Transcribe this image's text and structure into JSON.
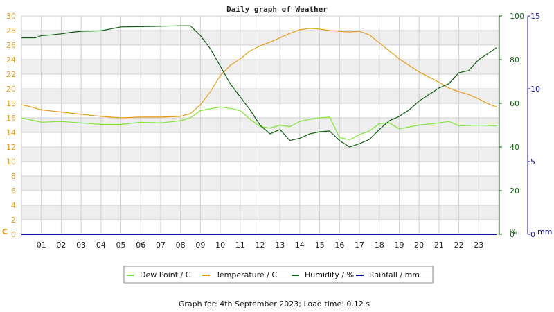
{
  "colors": {
    "dew": "#7ce62e",
    "temp": "#e69a12",
    "humidity": "#0b5e0b",
    "rain": "#1111aa",
    "band": "#eeeeee",
    "grid": "#cfcfcf"
  },
  "chart_data": {
    "type": "line",
    "title": "Daily graph of Weather",
    "footer": "Graph for: 4th September 2023; Load time: 0.12 s",
    "x_ticks": [
      "01",
      "02",
      "03",
      "04",
      "05",
      "06",
      "07",
      "08",
      "09",
      "10",
      "11",
      "12",
      "13",
      "14",
      "15",
      "16",
      "17",
      "18",
      "19",
      "20",
      "21",
      "22",
      "23"
    ],
    "xlim": [
      0,
      24
    ],
    "axes": {
      "temperature": {
        "unit": "C",
        "ylim": [
          0,
          30
        ],
        "ticks": [
          "0",
          "2",
          "4",
          "6",
          "8",
          "10",
          "12",
          "14",
          "16",
          "18",
          "20",
          "22",
          "24",
          "26",
          "28",
          "30"
        ]
      },
      "humidity": {
        "unit": "%",
        "ylim": [
          0,
          100
        ],
        "ticks": [
          "0",
          "20",
          "40",
          "60",
          "80",
          "100"
        ]
      },
      "rainfall": {
        "unit": "mm",
        "ylim": [
          0,
          15
        ],
        "ticks": [
          "0",
          "5",
          "10",
          "15"
        ]
      }
    },
    "grid": true,
    "legend_position": "bottom",
    "series": [
      {
        "name": "Dew Point / C",
        "axis": "temperature",
        "color_key": "dew",
        "x": [
          0,
          1,
          2,
          3,
          4,
          5,
          6,
          7,
          8,
          8.5,
          9,
          10,
          10.5,
          11,
          11.5,
          12,
          12.5,
          13,
          13.5,
          14,
          14.5,
          15,
          15.5,
          16,
          16.5,
          17,
          17.5,
          18,
          18.5,
          19,
          20,
          21,
          21.5,
          22,
          23,
          23.9
        ],
        "y": [
          16.0,
          15.4,
          15.5,
          15.3,
          15.1,
          15.1,
          15.4,
          15.3,
          15.6,
          16.0,
          17.0,
          17.5,
          17.3,
          17.0,
          15.8,
          14.8,
          14.6,
          15.0,
          14.8,
          15.5,
          15.8,
          16.0,
          16.1,
          13.3,
          13.0,
          13.7,
          14.2,
          15.2,
          15.3,
          14.5,
          15.0,
          15.3,
          15.5,
          14.9,
          15.0,
          14.9
        ]
      },
      {
        "name": "Temperature / C",
        "axis": "temperature",
        "color_key": "temp",
        "x": [
          0,
          0.5,
          1,
          2,
          3,
          4,
          5,
          6,
          7,
          8,
          8.5,
          9,
          9.5,
          10,
          10.5,
          11,
          11.5,
          12,
          12.5,
          13,
          13.5,
          14,
          14.5,
          15,
          15.5,
          16,
          16.5,
          17,
          17.5,
          18,
          18.5,
          19,
          19.5,
          20,
          20.5,
          21,
          21.5,
          22,
          22.5,
          23,
          23.5,
          23.9
        ],
        "y": [
          17.8,
          17.5,
          17.1,
          16.8,
          16.5,
          16.2,
          16.0,
          16.1,
          16.1,
          16.2,
          16.6,
          17.8,
          19.6,
          21.8,
          23.2,
          24.1,
          25.2,
          25.9,
          26.4,
          27.0,
          27.6,
          28.1,
          28.3,
          28.2,
          28.0,
          27.9,
          27.8,
          27.9,
          27.4,
          26.3,
          25.2,
          24.1,
          23.2,
          22.3,
          21.6,
          20.9,
          20.1,
          19.6,
          19.2,
          18.6,
          17.9,
          17.5
        ]
      },
      {
        "name": "Humidity / %",
        "axis": "humidity",
        "color_key": "humidity",
        "x": [
          0,
          0.7,
          1.0,
          1.5,
          2,
          2.5,
          3,
          4,
          5,
          6,
          7,
          8,
          8.5,
          9,
          9.5,
          10,
          10.5,
          11,
          11.5,
          12,
          12.5,
          13,
          13.5,
          14,
          14.5,
          15,
          15.5,
          16,
          16.5,
          17,
          17.5,
          18,
          18.5,
          19,
          19.5,
          20,
          20.5,
          21,
          21.5,
          22,
          22.5,
          23,
          23.5,
          23.9
        ],
        "y": [
          90,
          90,
          91,
          91.3,
          91.8,
          92.5,
          93,
          93.2,
          95,
          95.1,
          95.3,
          95.5,
          95.5,
          91,
          85,
          77,
          69,
          63,
          57,
          50,
          46,
          48,
          43,
          44,
          46,
          47,
          47.3,
          43,
          40,
          41.5,
          43.5,
          48,
          52,
          54,
          57,
          61,
          64,
          67,
          69,
          74,
          75,
          80,
          83,
          85.5
        ]
      },
      {
        "name": "Rainfall / mm",
        "axis": "rainfall",
        "color_key": "rain",
        "x": [
          0,
          23.9
        ],
        "y": [
          0,
          0
        ]
      }
    ]
  }
}
